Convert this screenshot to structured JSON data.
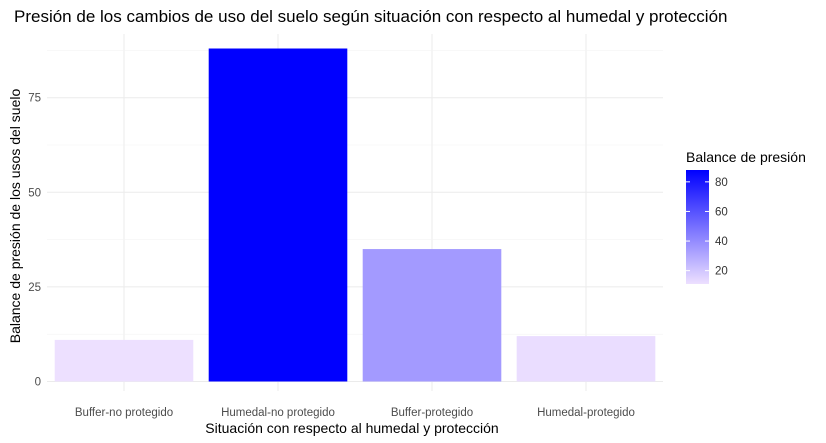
{
  "chart_data": {
    "type": "bar",
    "title": "Presión de los cambios de uso del suelo según situación con respecto al humedal y protección",
    "xlabel": "Situación con respecto al humedal y protección",
    "ylabel": "Balance de presión de los usos del suelo",
    "categories": [
      "Buffer-no protegido",
      "Humedal-no protegido",
      "Buffer-protegido",
      "Humedal-protegido"
    ],
    "values": [
      11,
      88,
      35,
      12
    ],
    "ylim": [
      0,
      92
    ],
    "yticks": [
      0,
      25,
      50,
      75
    ],
    "grid": true,
    "legend": {
      "title": "Balance de presión",
      "placement": "right",
      "ticks": [
        20,
        40,
        60,
        80
      ],
      "range": [
        11,
        88
      ],
      "low_color": "#ede0ff",
      "high_color": "#0000ff"
    }
  }
}
